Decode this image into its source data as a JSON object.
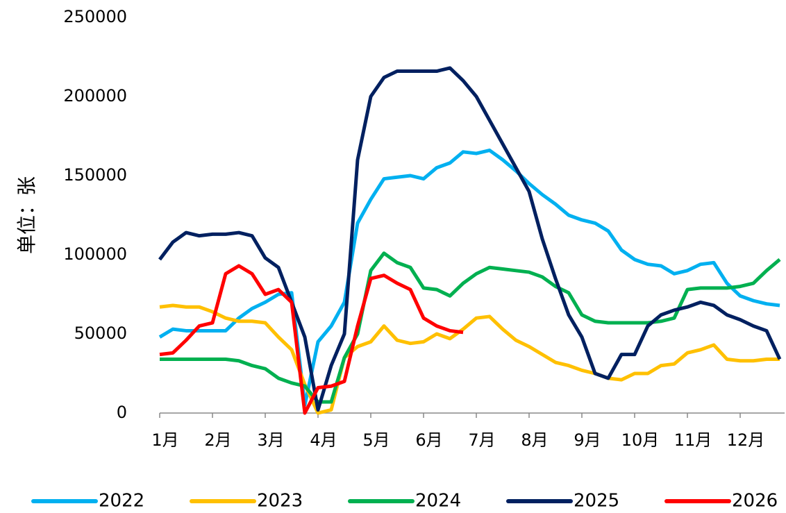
{
  "chart_data": {
    "type": "line",
    "ylabel": "单位：张",
    "categories": [
      "1月",
      null,
      null,
      null,
      "2月",
      null,
      null,
      null,
      "3月",
      null,
      null,
      null,
      "4月",
      null,
      null,
      null,
      "5月",
      null,
      null,
      null,
      "6月",
      null,
      null,
      null,
      "7月",
      null,
      null,
      null,
      "8月",
      null,
      null,
      null,
      "9月",
      null,
      null,
      null,
      "10月",
      null,
      null,
      null,
      "11月",
      null,
      null,
      null,
      "12月",
      null,
      null,
      null
    ],
    "ylim": [
      0,
      250000
    ],
    "yticks": [
      0,
      50000,
      100000,
      150000,
      200000,
      250000
    ],
    "grid": false,
    "legend": "bottom",
    "series": [
      {
        "name": "2022",
        "color": "#00b0f0",
        "values": [
          48000,
          53000,
          52000,
          52000,
          52000,
          52000,
          60000,
          66000,
          70000,
          75000,
          76000,
          5000,
          45000,
          55000,
          70000,
          120000,
          135000,
          148000,
          149000,
          150000,
          148000,
          155000,
          158000,
          165000,
          164000,
          166000,
          160000,
          153000,
          145000,
          138000,
          132000,
          125000,
          122000,
          120000,
          115000,
          103000,
          97000,
          94000,
          93000,
          88000,
          90000,
          94000,
          95000,
          82000,
          74000,
          71000,
          69000,
          68000
        ]
      },
      {
        "name": "2023",
        "color": "#ffc000",
        "values": [
          67000,
          68000,
          67000,
          67000,
          64000,
          60000,
          58000,
          58000,
          57000,
          48000,
          40000,
          18000,
          0,
          2000,
          35000,
          42000,
          45000,
          55000,
          46000,
          44000,
          45000,
          50000,
          47000,
          53000,
          60000,
          61000,
          53000,
          46000,
          42000,
          37000,
          32000,
          30000,
          27000,
          25000,
          22000,
          21000,
          25000,
          25000,
          30000,
          31000,
          38000,
          40000,
          43000,
          34000,
          33000,
          33000,
          34000,
          34000
        ]
      },
      {
        "name": "2024",
        "color": "#00b050",
        "values": [
          34000,
          34000,
          34000,
          34000,
          34000,
          34000,
          33000,
          30000,
          28000,
          22000,
          19000,
          17000,
          7000,
          7000,
          35000,
          50000,
          90000,
          101000,
          95000,
          92000,
          79000,
          78000,
          74000,
          82000,
          88000,
          92000,
          91000,
          90000,
          89000,
          86000,
          80000,
          76000,
          62000,
          58000,
          57000,
          57000,
          57000,
          57000,
          58000,
          60000,
          78000,
          79000,
          79000,
          79000,
          80000,
          82000,
          90000,
          97000
        ]
      },
      {
        "name": "2025",
        "color": "#002060",
        "values": [
          97000,
          108000,
          114000,
          112000,
          113000,
          113000,
          114000,
          112000,
          98000,
          92000,
          70000,
          48000,
          2000,
          30000,
          50000,
          160000,
          200000,
          212000,
          216000,
          216000,
          216000,
          216000,
          218000,
          210000,
          200000,
          185000,
          170000,
          155000,
          140000,
          110000,
          85000,
          62000,
          48000,
          25000,
          22000,
          37000,
          37000,
          55000,
          62000,
          65000,
          67000,
          70000,
          68000,
          62000,
          59000,
          55000,
          52000,
          34000
        ]
      },
      {
        "name": "2026",
        "color": "#ff0000",
        "values": [
          37000,
          38000,
          46000,
          55000,
          57000,
          88000,
          93000,
          88000,
          75000,
          78000,
          70000,
          0,
          16000,
          17000,
          20000,
          55000,
          85000,
          87000,
          82000,
          78000,
          60000,
          55000,
          52000,
          51000,
          null,
          null,
          null,
          null,
          null,
          null,
          null,
          null,
          null,
          null,
          null,
          null,
          null,
          null,
          null,
          null,
          null,
          null,
          null,
          null,
          null,
          null,
          null,
          null
        ]
      }
    ]
  }
}
